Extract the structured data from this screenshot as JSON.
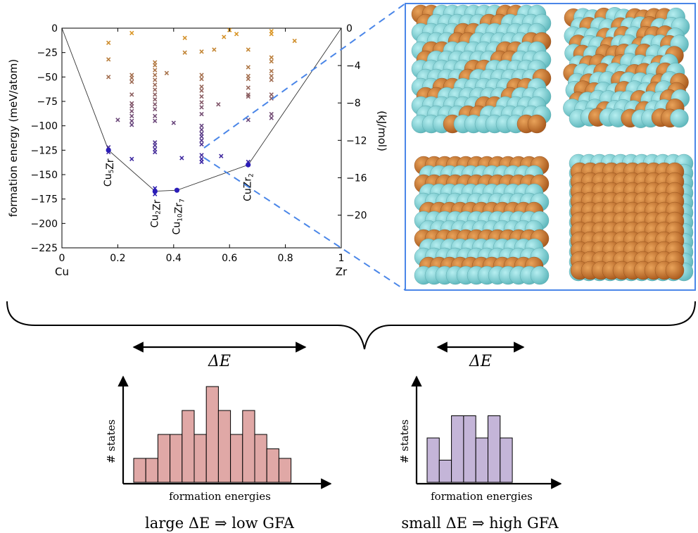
{
  "chart_data": [
    {
      "type": "scatter",
      "title": "",
      "ylabel": "formation energy (meV/atom)",
      "y2label": "(kJ/mol)",
      "xlim": [
        0,
        1
      ],
      "ylim": [
        -225,
        0
      ],
      "y2lim": [
        -23.5,
        0
      ],
      "xticks": [
        "0",
        "0.2",
        "0.4",
        "0.6",
        "0.8",
        "1"
      ],
      "xtick_values": [
        0,
        0.2,
        0.4,
        0.6,
        0.8,
        1
      ],
      "yticks": [
        "0",
        "−25",
        "−50",
        "−75",
        "−100",
        "−125",
        "−150",
        "−175",
        "−200",
        "−225"
      ],
      "ytick_values": [
        0,
        -25,
        -50,
        -75,
        -100,
        -125,
        -150,
        -175,
        -200,
        -225
      ],
      "y2ticks": [
        "0",
        "−4",
        "−8",
        "−12",
        "−16",
        "−20"
      ],
      "y2tick_values": [
        0,
        -4,
        -8,
        -12,
        -16,
        -20
      ],
      "x_end_labels": {
        "left": "Cu",
        "right": "Zr"
      },
      "hull": {
        "x": [
          0,
          0.1667,
          0.3333,
          0.4118,
          0.6667,
          1
        ],
        "y": [
          0,
          -125,
          -167,
          -166,
          -140,
          0
        ]
      },
      "hull_points": [
        {
          "x": 0.1667,
          "y": -125,
          "label": "Cu5Zr",
          "base": "Cu",
          "sub1": "5",
          "rest": "Zr",
          "sub2": ""
        },
        {
          "x": 0.3333,
          "y": -167,
          "label": "Cu2Zr",
          "base": "Cu",
          "sub1": "2",
          "rest": "Zr",
          "sub2": ""
        },
        {
          "x": 0.4118,
          "y": -166,
          "label": "Cu10Zr7",
          "base": "Cu",
          "sub1": "10",
          "rest": "Zr",
          "sub2": "7"
        },
        {
          "x": 0.6667,
          "y": -140,
          "label": "CuZr2",
          "base": "Cu",
          "sub1": "",
          "rest": "Zr",
          "sub2": "2"
        }
      ],
      "structures": [
        {
          "x": 0.1667,
          "y": -122
        },
        {
          "x": 0.1667,
          "y": -127
        },
        {
          "x": 0.1667,
          "y": -50
        },
        {
          "x": 0.1667,
          "y": -32
        },
        {
          "x": 0.1667,
          "y": -15
        },
        {
          "x": 0.2,
          "y": -94
        },
        {
          "x": 0.25,
          "y": -5
        },
        {
          "x": 0.25,
          "y": -48
        },
        {
          "x": 0.25,
          "y": -51
        },
        {
          "x": 0.25,
          "y": -55
        },
        {
          "x": 0.25,
          "y": -68
        },
        {
          "x": 0.25,
          "y": -77
        },
        {
          "x": 0.25,
          "y": -80
        },
        {
          "x": 0.25,
          "y": -85
        },
        {
          "x": 0.25,
          "y": -90
        },
        {
          "x": 0.25,
          "y": -95
        },
        {
          "x": 0.25,
          "y": -99
        },
        {
          "x": 0.25,
          "y": -134
        },
        {
          "x": 0.333,
          "y": -35
        },
        {
          "x": 0.333,
          "y": -38
        },
        {
          "x": 0.333,
          "y": -43
        },
        {
          "x": 0.333,
          "y": -48
        },
        {
          "x": 0.333,
          "y": -53
        },
        {
          "x": 0.333,
          "y": -58
        },
        {
          "x": 0.333,
          "y": -63
        },
        {
          "x": 0.333,
          "y": -68
        },
        {
          "x": 0.333,
          "y": -73
        },
        {
          "x": 0.333,
          "y": -78
        },
        {
          "x": 0.333,
          "y": -83
        },
        {
          "x": 0.333,
          "y": -90
        },
        {
          "x": 0.333,
          "y": -95
        },
        {
          "x": 0.333,
          "y": -117
        },
        {
          "x": 0.333,
          "y": -120
        },
        {
          "x": 0.333,
          "y": -124
        },
        {
          "x": 0.333,
          "y": -127
        },
        {
          "x": 0.333,
          "y": -164
        },
        {
          "x": 0.333,
          "y": -170
        },
        {
          "x": 0.375,
          "y": -46
        },
        {
          "x": 0.4,
          "y": -97
        },
        {
          "x": 0.429,
          "y": -133
        },
        {
          "x": 0.44,
          "y": -10
        },
        {
          "x": 0.44,
          "y": -25
        },
        {
          "x": 0.5,
          "y": -24
        },
        {
          "x": 0.5,
          "y": -48
        },
        {
          "x": 0.5,
          "y": -52
        },
        {
          "x": 0.5,
          "y": -60
        },
        {
          "x": 0.5,
          "y": -64
        },
        {
          "x": 0.5,
          "y": -70
        },
        {
          "x": 0.5,
          "y": -76
        },
        {
          "x": 0.5,
          "y": -81
        },
        {
          "x": 0.5,
          "y": -88
        },
        {
          "x": 0.5,
          "y": -100
        },
        {
          "x": 0.5,
          "y": -104
        },
        {
          "x": 0.5,
          "y": -108
        },
        {
          "x": 0.5,
          "y": -111
        },
        {
          "x": 0.5,
          "y": -115
        },
        {
          "x": 0.5,
          "y": -119
        },
        {
          "x": 0.5,
          "y": -130
        },
        {
          "x": 0.5,
          "y": -134
        },
        {
          "x": 0.5,
          "y": -137
        },
        {
          "x": 0.545,
          "y": -22
        },
        {
          "x": 0.56,
          "y": -78
        },
        {
          "x": 0.57,
          "y": -131
        },
        {
          "x": 0.58,
          "y": -9
        },
        {
          "x": 0.6,
          "y": -2
        },
        {
          "x": 0.625,
          "y": -6
        },
        {
          "x": 0.667,
          "y": -22
        },
        {
          "x": 0.667,
          "y": -40
        },
        {
          "x": 0.667,
          "y": -49
        },
        {
          "x": 0.667,
          "y": -52
        },
        {
          "x": 0.667,
          "y": -61
        },
        {
          "x": 0.667,
          "y": -68
        },
        {
          "x": 0.667,
          "y": -70
        },
        {
          "x": 0.667,
          "y": -94
        },
        {
          "x": 0.667,
          "y": -137
        },
        {
          "x": 0.75,
          "y": -3
        },
        {
          "x": 0.75,
          "y": -6
        },
        {
          "x": 0.75,
          "y": -30
        },
        {
          "x": 0.75,
          "y": -34
        },
        {
          "x": 0.75,
          "y": -44
        },
        {
          "x": 0.75,
          "y": -49
        },
        {
          "x": 0.75,
          "y": -53
        },
        {
          "x": 0.75,
          "y": -68
        },
        {
          "x": 0.75,
          "y": -72
        },
        {
          "x": 0.75,
          "y": -88
        },
        {
          "x": 0.75,
          "y": -92
        },
        {
          "x": 0.833,
          "y": -13
        }
      ],
      "color_low": "#2a1ab0",
      "color_high": "#e09a20",
      "hull_color": "#2b1db8"
    },
    {
      "type": "bar",
      "title": "large ΔE ⇒ low GFA",
      "xlabel": "formation energies",
      "ylabel": "# states",
      "range_label": "ΔE",
      "values": [
        1,
        1,
        2,
        2,
        3,
        2,
        4,
        3,
        2,
        3,
        2,
        1.4,
        1
      ],
      "color": "#e0a8a6"
    },
    {
      "type": "bar",
      "title": "small ΔE ⇒ high GFA",
      "xlabel": "formation energies",
      "ylabel": "# states",
      "range_label": "ΔE",
      "values": [
        3,
        1.5,
        4.5,
        4.5,
        3,
        4.5,
        3
      ],
      "color": "#c4b5d8"
    }
  ],
  "colors": {
    "zoom_box": "#4a86e8",
    "atom_cu": "#c8762a",
    "atom_zr": "#7ccfd4"
  }
}
